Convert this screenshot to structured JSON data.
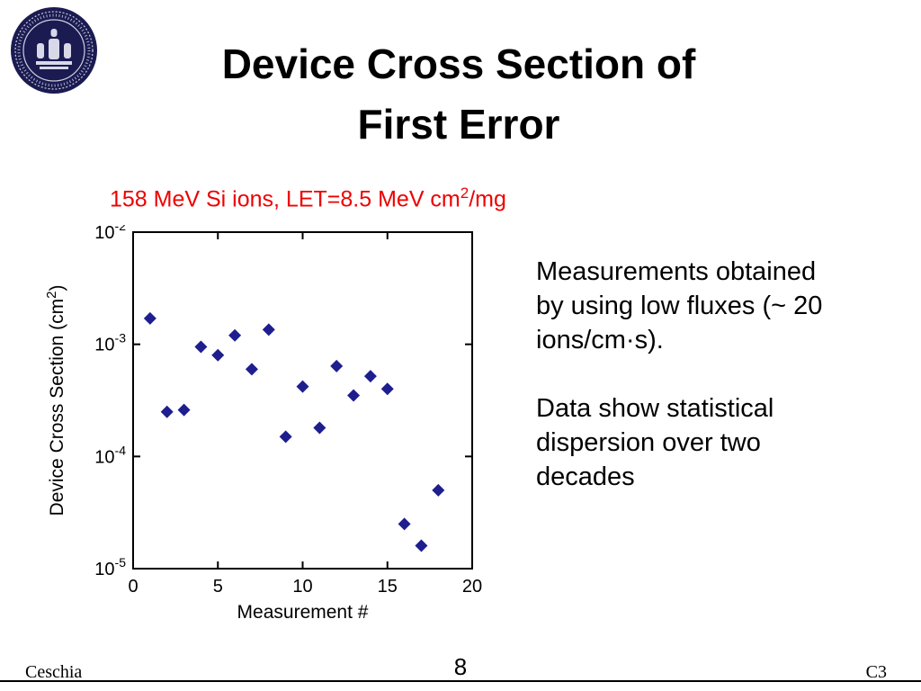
{
  "page": {
    "title_line1": "Device Cross Section of",
    "title_line2": "First Error",
    "footer_left": "Ceschia",
    "footer_center": "8",
    "footer_right": "C3"
  },
  "subtitle": {
    "prefix": "158 MeV Si ions, LET=8.5 MeV cm",
    "sup": "2",
    "suffix": "/mg",
    "color": "#ee0000"
  },
  "annotation": {
    "para1_lines": [
      "Measurements obtained",
      "by using low fluxes (~ 20",
      "ions/cm·s)."
    ],
    "para2_lines": [
      "Data show statistical",
      "dispersion over two",
      "decades"
    ]
  },
  "logo": {
    "name": "university-seal"
  },
  "chart_data": {
    "type": "scatter",
    "title": "158 MeV Si ions, LET=8.5 MeV cm²/mg",
    "marker": "diamond",
    "marker_color": "#1e1e8f",
    "xlabel": "Measurement #",
    "ylabel": "Device Cross Section (cm²)",
    "ylabel_main": "Device Cross Section (cm",
    "ylabel_sup": "2",
    "ylabel_end": ")",
    "xlim": [
      0,
      20
    ],
    "ylim": [
      1e-05,
      0.01
    ],
    "y_scale": "log",
    "grid": false,
    "legend": "none",
    "x_ticks": [
      0,
      5,
      10,
      15,
      20
    ],
    "y_ticks": [
      {
        "base": "10",
        "exp": "-2",
        "value": 0.01
      },
      {
        "base": "10",
        "exp": "-3",
        "value": 0.001
      },
      {
        "base": "10",
        "exp": "-4",
        "value": 0.0001
      },
      {
        "base": "10",
        "exp": "-5",
        "value": 1e-05
      }
    ],
    "x": [
      1,
      2,
      3,
      4,
      5,
      6,
      7,
      8,
      9,
      10,
      11,
      12,
      13,
      14,
      15,
      16,
      17,
      18
    ],
    "y": [
      0.0017,
      0.00025,
      0.00026,
      0.00095,
      0.0008,
      0.0012,
      0.0006,
      0.00135,
      0.00015,
      0.00042,
      0.00018,
      0.00064,
      0.00035,
      0.00052,
      0.0004,
      2.5e-05,
      1.6e-05,
      5e-05
    ]
  }
}
